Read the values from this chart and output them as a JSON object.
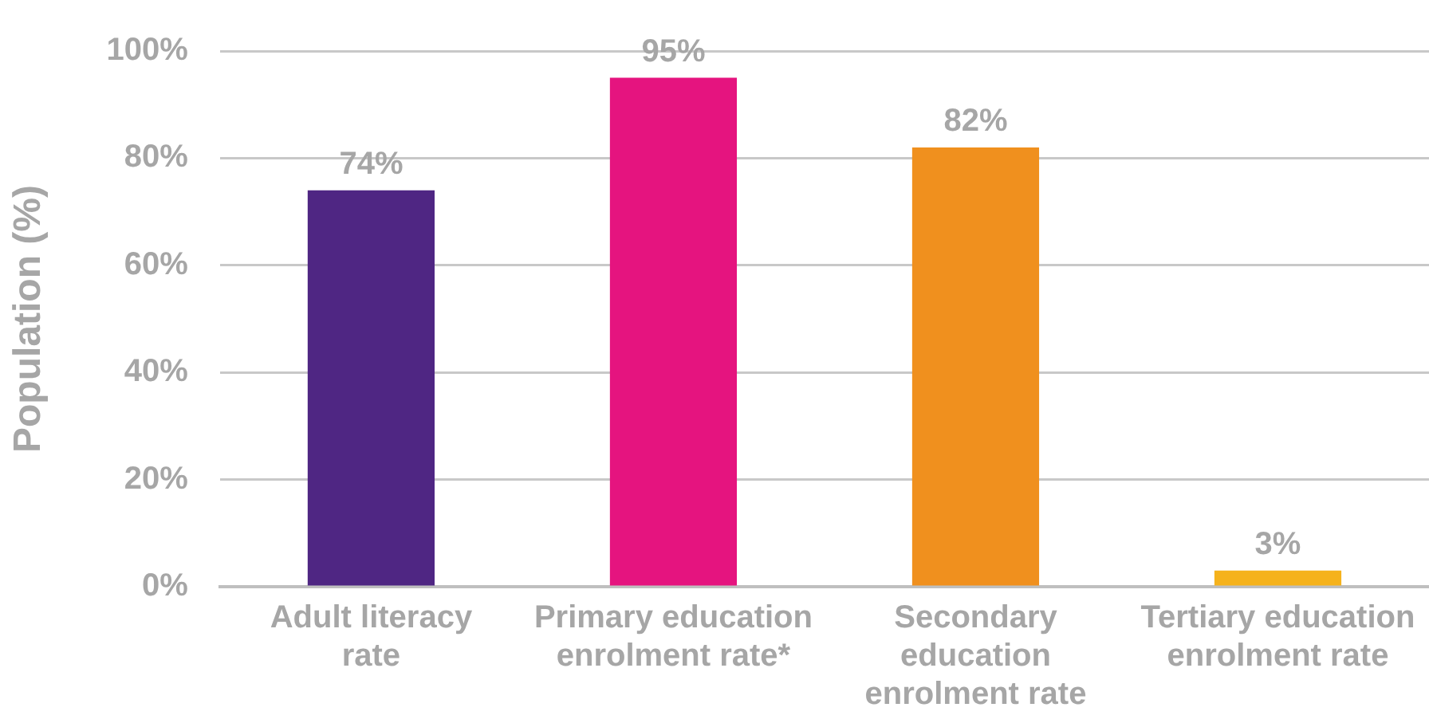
{
  "chart_data": {
    "type": "bar",
    "ylabel": "Population (%)",
    "categories": [
      "Adult literacy rate",
      "Primary education enrolment rate*",
      "Secondary education enrolment rate",
      "Tertiary education enrolment rate"
    ],
    "values": [
      74,
      95,
      82,
      3
    ],
    "colors": [
      "#4f2683",
      "#e5147f",
      "#f0901e",
      "#f5b21c"
    ],
    "value_labels": [
      "74%",
      "95%",
      "82%",
      "3%"
    ],
    "ylim": [
      0,
      100
    ],
    "yticks": [
      {
        "value": 0,
        "label": "0%"
      },
      {
        "value": 20,
        "label": "20%"
      },
      {
        "value": 40,
        "label": "40%"
      },
      {
        "value": 60,
        "label": "60%"
      },
      {
        "value": 80,
        "label": "80%"
      },
      {
        "value": 100,
        "label": "100%"
      }
    ],
    "grid": "y"
  }
}
